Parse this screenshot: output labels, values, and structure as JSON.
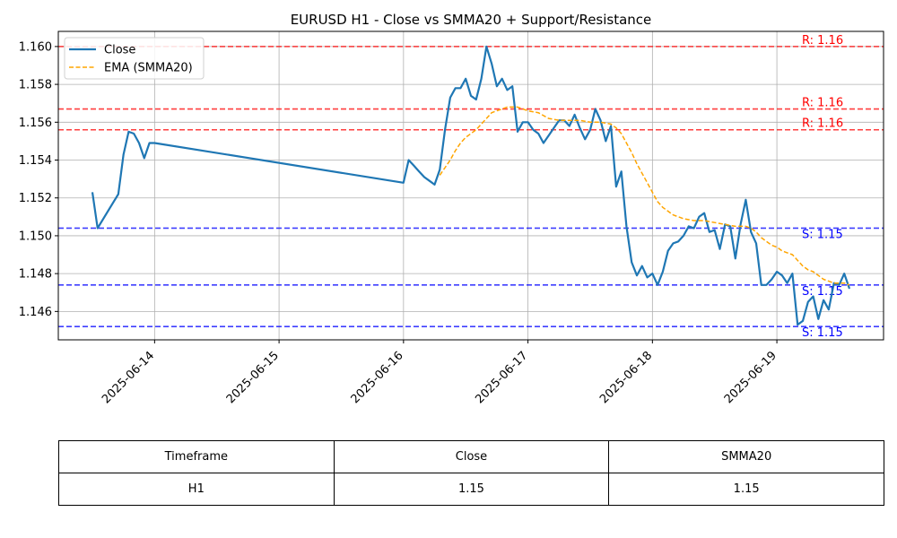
{
  "chart_data": {
    "type": "line",
    "title": "EURUSD H1 - Close vs SMMA20 + Support/Resistance",
    "xlabel": "",
    "ylabel": "",
    "x_range": [
      "2025-06-13T12:00",
      "2025-06-19T14:00"
    ],
    "ylim": [
      1.1445,
      1.1608
    ],
    "x_ticks": [
      "2025-06-14",
      "2025-06-15",
      "2025-06-16",
      "2025-06-17",
      "2025-06-18",
      "2025-06-19"
    ],
    "y_ticks": [
      1.146,
      1.148,
      1.15,
      1.152,
      1.154,
      1.156,
      1.158,
      1.16
    ],
    "grid": true,
    "legend_position": "top-left",
    "series": [
      {
        "name": "Close",
        "color": "#1f77b4",
        "style": "solid",
        "points": [
          [
            "2025-06-13T12:00",
            1.1523
          ],
          [
            "2025-06-13T13:00",
            1.1504
          ],
          [
            "2025-06-13T17:00",
            1.1522
          ],
          [
            "2025-06-13T18:00",
            1.1543
          ],
          [
            "2025-06-13T19:00",
            1.1555
          ],
          [
            "2025-06-13T20:00",
            1.1554
          ],
          [
            "2025-06-13T21:00",
            1.1549
          ],
          [
            "2025-06-13T22:00",
            1.1541
          ],
          [
            "2025-06-13T23:00",
            1.1549
          ],
          [
            "2025-06-14T00:00",
            1.1549
          ],
          [
            "2025-06-16T00:00",
            1.1528
          ],
          [
            "2025-06-16T01:00",
            1.154
          ],
          [
            "2025-06-16T02:00",
            1.1537
          ],
          [
            "2025-06-16T03:00",
            1.1534
          ],
          [
            "2025-06-16T04:00",
            1.1531
          ],
          [
            "2025-06-16T05:00",
            1.1529
          ],
          [
            "2025-06-16T06:00",
            1.1527
          ],
          [
            "2025-06-16T07:00",
            1.1535
          ],
          [
            "2025-06-16T08:00",
            1.1556
          ],
          [
            "2025-06-16T09:00",
            1.1573
          ],
          [
            "2025-06-16T10:00",
            1.1578
          ],
          [
            "2025-06-16T11:00",
            1.1578
          ],
          [
            "2025-06-16T12:00",
            1.1583
          ],
          [
            "2025-06-16T13:00",
            1.1574
          ],
          [
            "2025-06-16T14:00",
            1.1572
          ],
          [
            "2025-06-16T15:00",
            1.1583
          ],
          [
            "2025-06-16T16:00",
            1.16
          ],
          [
            "2025-06-16T17:00",
            1.1591
          ],
          [
            "2025-06-16T18:00",
            1.1579
          ],
          [
            "2025-06-16T19:00",
            1.1583
          ],
          [
            "2025-06-16T20:00",
            1.1577
          ],
          [
            "2025-06-16T21:00",
            1.1579
          ],
          [
            "2025-06-16T22:00",
            1.1555
          ],
          [
            "2025-06-16T23:00",
            1.156
          ],
          [
            "2025-06-17T00:00",
            1.156
          ],
          [
            "2025-06-17T01:00",
            1.1556
          ],
          [
            "2025-06-17T02:00",
            1.1554
          ],
          [
            "2025-06-17T03:00",
            1.1549
          ],
          [
            "2025-06-17T04:00",
            1.1553
          ],
          [
            "2025-06-17T05:00",
            1.1557
          ],
          [
            "2025-06-17T06:00",
            1.1561
          ],
          [
            "2025-06-17T07:00",
            1.1561
          ],
          [
            "2025-06-17T08:00",
            1.1558
          ],
          [
            "2025-06-17T09:00",
            1.1564
          ],
          [
            "2025-06-17T10:00",
            1.1557
          ],
          [
            "2025-06-17T11:00",
            1.1551
          ],
          [
            "2025-06-17T12:00",
            1.1556
          ],
          [
            "2025-06-17T13:00",
            1.1567
          ],
          [
            "2025-06-17T14:00",
            1.1561
          ],
          [
            "2025-06-17T15:00",
            1.155
          ],
          [
            "2025-06-17T16:00",
            1.1558
          ],
          [
            "2025-06-17T17:00",
            1.1526
          ],
          [
            "2025-06-17T18:00",
            1.1534
          ],
          [
            "2025-06-17T19:00",
            1.1505
          ],
          [
            "2025-06-17T20:00",
            1.1486
          ],
          [
            "2025-06-17T21:00",
            1.1479
          ],
          [
            "2025-06-17T22:00",
            1.1484
          ],
          [
            "2025-06-17T23:00",
            1.1478
          ],
          [
            "2025-06-18T00:00",
            1.148
          ],
          [
            "2025-06-18T01:00",
            1.1474
          ],
          [
            "2025-06-18T02:00",
            1.1481
          ],
          [
            "2025-06-18T03:00",
            1.1492
          ],
          [
            "2025-06-18T04:00",
            1.1496
          ],
          [
            "2025-06-18T05:00",
            1.1497
          ],
          [
            "2025-06-18T06:00",
            1.15
          ],
          [
            "2025-06-18T07:00",
            1.1505
          ],
          [
            "2025-06-18T08:00",
            1.1504
          ],
          [
            "2025-06-18T09:00",
            1.151
          ],
          [
            "2025-06-18T10:00",
            1.1512
          ],
          [
            "2025-06-18T11:00",
            1.1502
          ],
          [
            "2025-06-18T12:00",
            1.1503
          ],
          [
            "2025-06-18T13:00",
            1.1493
          ],
          [
            "2025-06-18T14:00",
            1.1506
          ],
          [
            "2025-06-18T15:00",
            1.1505
          ],
          [
            "2025-06-18T16:00",
            1.1488
          ],
          [
            "2025-06-18T17:00",
            1.1506
          ],
          [
            "2025-06-18T18:00",
            1.1519
          ],
          [
            "2025-06-18T19:00",
            1.1502
          ],
          [
            "2025-06-18T20:00",
            1.1496
          ],
          [
            "2025-06-18T21:00",
            1.1474
          ],
          [
            "2025-06-18T22:00",
            1.1474
          ],
          [
            "2025-06-18T23:00",
            1.1477
          ],
          [
            "2025-06-19T00:00",
            1.1481
          ],
          [
            "2025-06-19T01:00",
            1.1479
          ],
          [
            "2025-06-19T02:00",
            1.1475
          ],
          [
            "2025-06-19T03:00",
            1.148
          ],
          [
            "2025-06-19T04:00",
            1.1453
          ],
          [
            "2025-06-19T05:00",
            1.1455
          ],
          [
            "2025-06-19T06:00",
            1.1465
          ],
          [
            "2025-06-19T07:00",
            1.1468
          ],
          [
            "2025-06-19T08:00",
            1.1456
          ],
          [
            "2025-06-19T09:00",
            1.1466
          ],
          [
            "2025-06-19T10:00",
            1.1461
          ],
          [
            "2025-06-19T11:00",
            1.1475
          ],
          [
            "2025-06-19T12:00",
            1.1474
          ],
          [
            "2025-06-19T13:00",
            1.148
          ],
          [
            "2025-06-19T14:00",
            1.1472
          ]
        ]
      },
      {
        "name": "EMA (SMMA20)",
        "color": "#ffa500",
        "style": "dashed",
        "points": [
          [
            "2025-06-16T07:00",
            1.1532
          ],
          [
            "2025-06-16T08:00",
            1.1536
          ],
          [
            "2025-06-16T09:00",
            1.154
          ],
          [
            "2025-06-16T10:00",
            1.1545
          ],
          [
            "2025-06-16T11:00",
            1.1549
          ],
          [
            "2025-06-16T12:00",
            1.1552
          ],
          [
            "2025-06-16T13:00",
            1.1554
          ],
          [
            "2025-06-16T14:00",
            1.1556
          ],
          [
            "2025-06-16T15:00",
            1.1559
          ],
          [
            "2025-06-16T16:00",
            1.1562
          ],
          [
            "2025-06-16T17:00",
            1.1565
          ],
          [
            "2025-06-16T18:00",
            1.1566
          ],
          [
            "2025-06-16T19:00",
            1.1567
          ],
          [
            "2025-06-16T20:00",
            1.1568
          ],
          [
            "2025-06-16T21:00",
            1.1568
          ],
          [
            "2025-06-16T22:00",
            1.1568
          ],
          [
            "2025-06-16T23:00",
            1.1567
          ],
          [
            "2025-06-17T00:00",
            1.1566
          ],
          [
            "2025-06-17T02:00",
            1.1565
          ],
          [
            "2025-06-17T04:00",
            1.1562
          ],
          [
            "2025-06-17T06:00",
            1.1561
          ],
          [
            "2025-06-17T08:00",
            1.1561
          ],
          [
            "2025-06-17T10:00",
            1.1561
          ],
          [
            "2025-06-17T12:00",
            1.156
          ],
          [
            "2025-06-17T14:00",
            1.156
          ],
          [
            "2025-06-17T16:00",
            1.1559
          ],
          [
            "2025-06-17T17:00",
            1.1557
          ],
          [
            "2025-06-17T18:00",
            1.1554
          ],
          [
            "2025-06-17T19:00",
            1.1549
          ],
          [
            "2025-06-17T20:00",
            1.1544
          ],
          [
            "2025-06-17T21:00",
            1.1538
          ],
          [
            "2025-06-17T22:00",
            1.1533
          ],
          [
            "2025-06-17T23:00",
            1.1528
          ],
          [
            "2025-06-18T00:00",
            1.1523
          ],
          [
            "2025-06-18T01:00",
            1.1518
          ],
          [
            "2025-06-18T02:00",
            1.1515
          ],
          [
            "2025-06-18T03:00",
            1.1513
          ],
          [
            "2025-06-18T04:00",
            1.1511
          ],
          [
            "2025-06-18T05:00",
            1.151
          ],
          [
            "2025-06-18T06:00",
            1.1509
          ],
          [
            "2025-06-18T08:00",
            1.1508
          ],
          [
            "2025-06-18T10:00",
            1.1508
          ],
          [
            "2025-06-18T12:00",
            1.1507
          ],
          [
            "2025-06-18T14:00",
            1.1506
          ],
          [
            "2025-06-18T16:00",
            1.1505
          ],
          [
            "2025-06-18T18:00",
            1.1505
          ],
          [
            "2025-06-18T19:00",
            1.1504
          ],
          [
            "2025-06-18T20:00",
            1.1502
          ],
          [
            "2025-06-18T21:00",
            1.1499
          ],
          [
            "2025-06-18T22:00",
            1.1497
          ],
          [
            "2025-06-18T23:00",
            1.1495
          ],
          [
            "2025-06-19T00:00",
            1.1494
          ],
          [
            "2025-06-19T01:00",
            1.1492
          ],
          [
            "2025-06-19T02:00",
            1.1491
          ],
          [
            "2025-06-19T03:00",
            1.149
          ],
          [
            "2025-06-19T04:00",
            1.1487
          ],
          [
            "2025-06-19T05:00",
            1.1484
          ],
          [
            "2025-06-19T06:00",
            1.1482
          ],
          [
            "2025-06-19T07:00",
            1.1481
          ],
          [
            "2025-06-19T08:00",
            1.1479
          ],
          [
            "2025-06-19T09:00",
            1.1477
          ],
          [
            "2025-06-19T10:00",
            1.1476
          ],
          [
            "2025-06-19T11:00",
            1.1475
          ],
          [
            "2025-06-19T12:00",
            1.1475
          ],
          [
            "2025-06-19T13:00",
            1.1475
          ],
          [
            "2025-06-19T14:00",
            1.1474
          ]
        ]
      }
    ],
    "levels": [
      {
        "kind": "resistance",
        "value": 1.16,
        "label": "R: 1.16",
        "color": "#ff0000"
      },
      {
        "kind": "resistance",
        "value": 1.1567,
        "label": "R: 1.16",
        "color": "#ff0000"
      },
      {
        "kind": "resistance",
        "value": 1.1556,
        "label": "R: 1.16",
        "color": "#ff0000"
      },
      {
        "kind": "support",
        "value": 1.1504,
        "label": "S: 1.15",
        "color": "#0000ff"
      },
      {
        "kind": "support",
        "value": 1.1474,
        "label": "S: 1.15",
        "color": "#0000ff"
      },
      {
        "kind": "support",
        "value": 1.1452,
        "label": "S: 1.15",
        "color": "#0000ff"
      }
    ]
  },
  "table": {
    "headers": [
      "Timeframe",
      "Close",
      "SMMA20"
    ],
    "rows": [
      [
        "H1",
        "1.15",
        "1.15"
      ]
    ]
  }
}
